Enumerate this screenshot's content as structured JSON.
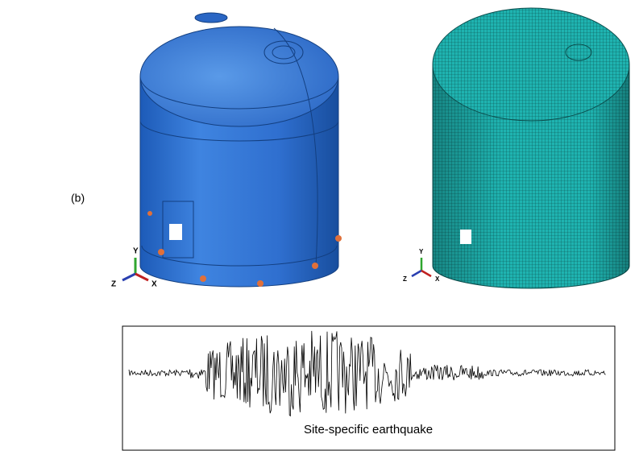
{
  "label": "(b)",
  "left_model": {
    "axes": {
      "y": "Y",
      "z": "Z",
      "x": "X"
    }
  },
  "right_model": {
    "axes": {
      "y": "Y",
      "z": "Z",
      "x": "X"
    }
  },
  "waveform": {
    "caption": "Site-specific earthquake"
  }
}
